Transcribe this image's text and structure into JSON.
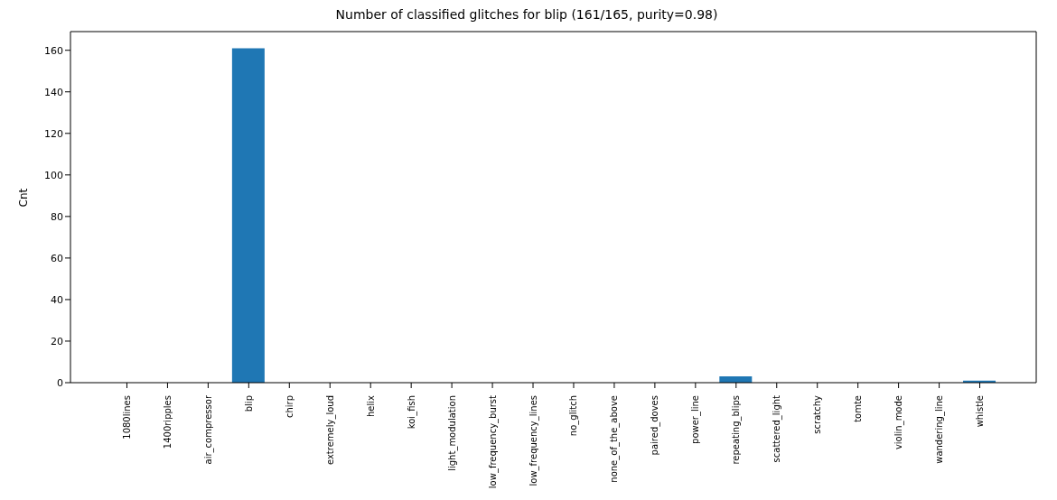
{
  "chart_data": {
    "type": "bar",
    "title": "Number of classified glitches for blip (161/165, purity=0.98)",
    "ylabel": "Cnt",
    "categories": [
      "1080lines",
      "1400ripples",
      "air_compressor",
      "blip",
      "chirp",
      "extremely_loud",
      "helix",
      "koi_fish",
      "light_modulation",
      "low_frequency_burst",
      "low_frequency_lines",
      "no_glitch",
      "none_of_the_above",
      "paired_doves",
      "power_line",
      "repeating_blips",
      "scattered_light",
      "scratchy",
      "tomte",
      "violin_mode",
      "wandering_line",
      "whistle"
    ],
    "values": [
      0,
      0,
      0,
      161,
      0,
      0,
      0,
      0,
      0,
      0,
      0,
      0,
      0,
      0,
      0,
      3,
      0,
      0,
      0,
      0,
      0,
      1
    ],
    "color": "#1f77b4",
    "ylim": [
      0,
      169
    ],
    "yticks": [
      0,
      20,
      40,
      60,
      80,
      100,
      120,
      140,
      160
    ],
    "grid": false
  }
}
